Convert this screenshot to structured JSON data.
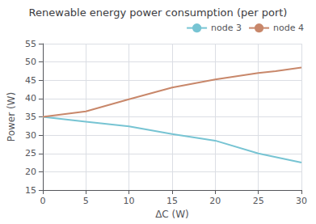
{
  "chart_data": {
    "type": "line",
    "title": "Renewable energy power consumption (per port)",
    "xlabel": "ΔC (W)",
    "ylabel": "Power (W)",
    "xlim": [
      0,
      30
    ],
    "ylim": [
      15,
      55
    ],
    "xticks": [
      0,
      5,
      10,
      15,
      20,
      25,
      30
    ],
    "yticks": [
      15,
      20,
      25,
      30,
      35,
      40,
      45,
      50,
      55
    ],
    "series": [
      {
        "name": "node 3",
        "color": "#77c4d3",
        "x": [
          0,
          5,
          10,
          15,
          20,
          25,
          30
        ],
        "values": [
          35.0,
          33.7,
          32.4,
          30.3,
          28.5,
          25.0,
          22.5
        ]
      },
      {
        "name": "node 4",
        "color": "#c8876a",
        "x": [
          0,
          5,
          10,
          15,
          20,
          25,
          27,
          30
        ],
        "values": [
          35.0,
          36.5,
          39.8,
          43.0,
          45.2,
          47.0,
          47.5,
          48.5
        ]
      }
    ],
    "grid": true,
    "legend": "upper right"
  }
}
